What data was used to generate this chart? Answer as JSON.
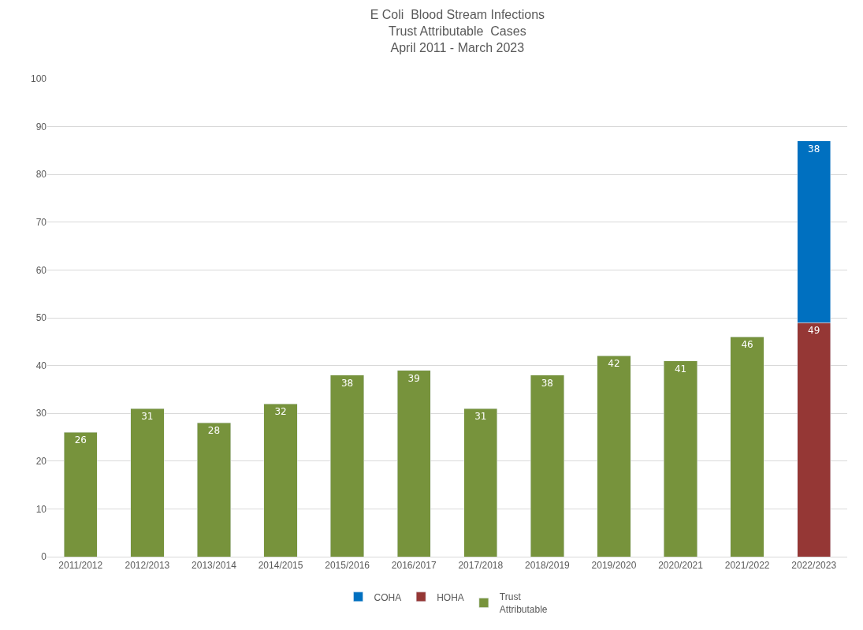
{
  "chart_data": {
    "type": "bar",
    "title": "E Coli  Blood Stream Infections\nTrust Attributable  Cases\nApril 2011 - March 2023",
    "categories": [
      "2011/2012",
      "2012/2013",
      "2013/2014",
      "2014/2015",
      "2015/2016",
      "2016/2017",
      "2017/2018",
      "2018/2019",
      "2019/2020",
      "2020/2021",
      "2021/2022",
      "2022/2023"
    ],
    "stacked": true,
    "series": [
      {
        "name": "Trust Attributable",
        "color": "#77933c",
        "values": [
          26,
          31,
          28,
          32,
          38,
          39,
          31,
          38,
          42,
          41,
          46,
          null
        ]
      },
      {
        "name": "HOHA",
        "color": "#953735",
        "values": [
          null,
          null,
          null,
          null,
          null,
          null,
          null,
          null,
          null,
          null,
          null,
          49
        ]
      },
      {
        "name": "COHA",
        "color": "#0070c0",
        "values": [
          null,
          null,
          null,
          null,
          null,
          null,
          null,
          null,
          null,
          null,
          null,
          38
        ]
      }
    ],
    "ylim": [
      0,
      100
    ],
    "yticks": [
      0,
      10,
      20,
      30,
      40,
      50,
      60,
      70,
      80,
      90,
      100
    ],
    "grid": "y",
    "legend": "bottom",
    "data_labels": true
  }
}
